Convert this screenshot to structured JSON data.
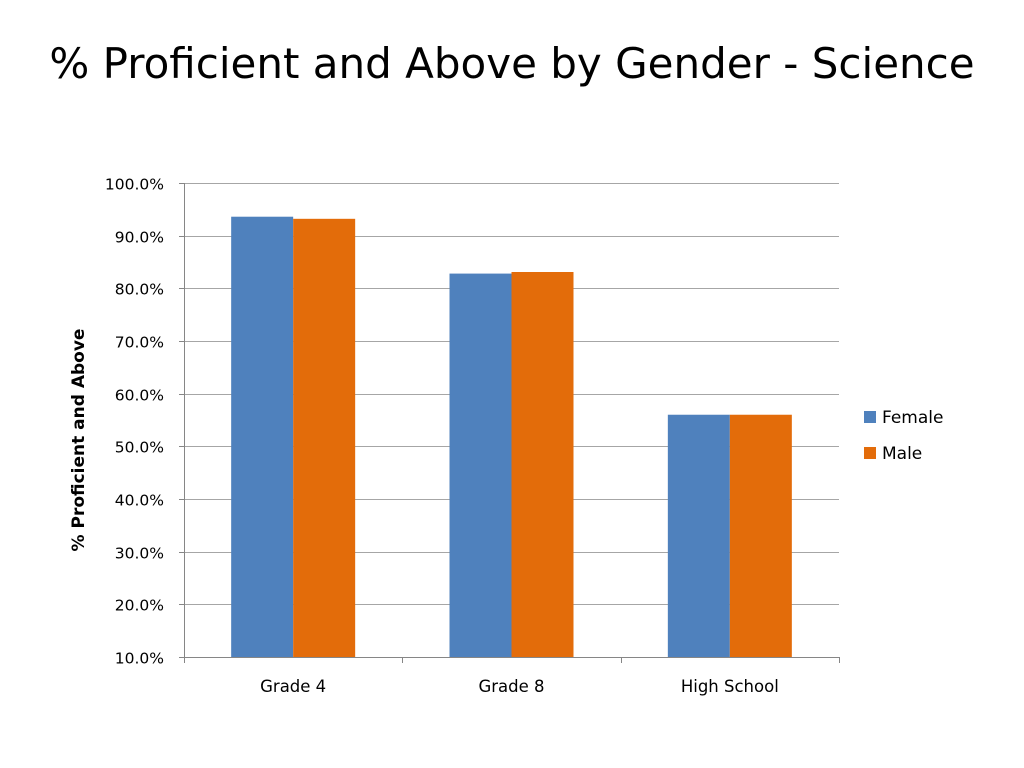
{
  "slide": {
    "title": "% Proficient and Above by Gender - Science"
  },
  "colors": {
    "female": "#4F81BD",
    "male": "#E36C0A",
    "gridline": "#A6A6A6",
    "axis": "#868686",
    "text": "#000000"
  },
  "chart_data": {
    "type": "bar",
    "title": "% Proficient and Above by Gender - Science",
    "xlabel": "",
    "ylabel": "% Proficient and Above",
    "categories": [
      "Grade 4",
      "Grade 8",
      "High School"
    ],
    "series": [
      {
        "name": "Female",
        "values": [
          93.6,
          82.8,
          56.0
        ],
        "color": "#4F81BD"
      },
      {
        "name": "Male",
        "values": [
          93.2,
          83.1,
          56.0
        ],
        "color": "#E36C0A"
      }
    ],
    "ylim": [
      10,
      100
    ],
    "yticks": [
      10,
      20,
      30,
      40,
      50,
      60,
      70,
      80,
      90,
      100
    ],
    "ytick_labels": [
      "10.0%",
      "20.0%",
      "30.0%",
      "40.0%",
      "50.0%",
      "60.0%",
      "70.0%",
      "80.0%",
      "90.0%",
      "100.0%"
    ],
    "grid": true,
    "legend_position": "right"
  }
}
